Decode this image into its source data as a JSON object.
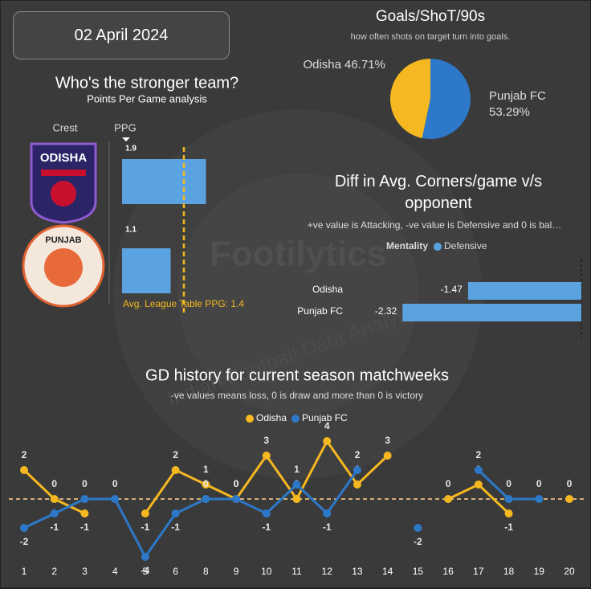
{
  "date": "02 April 2024",
  "watermark": {
    "title": "Footilytics",
    "subtitle": "Indian Football Data Analytics"
  },
  "chart_data": [
    {
      "type": "bar",
      "orientation": "horizontal",
      "title": "Who's the stronger team?",
      "subtitle": "Points Per Game analysis",
      "column_headers": [
        "Crest",
        "PPG"
      ],
      "categories": [
        "ODISHA",
        "PUNJAB"
      ],
      "values": [
        1.9,
        1.1
      ],
      "color": "#5ba3e0",
      "xlim": [
        0,
        3
      ],
      "reference": {
        "value": 1.4,
        "label": "Avg. League Table PPG: 1.4",
        "color": "#f5b820"
      }
    },
    {
      "type": "pie",
      "title": "Goals/ShoT/90s",
      "subtitle": "how often shots on target turn into goals.",
      "categories": [
        "Odisha",
        "Punjab FC"
      ],
      "values": [
        46.71,
        53.29
      ],
      "value_labels": [
        "46.71%",
        "53.29%"
      ],
      "colors": [
        "#f5b820",
        "#2d78c8"
      ]
    },
    {
      "type": "bar",
      "orientation": "horizontal",
      "title": "Diff in Avg. Corners/game v/s opponent",
      "subtitle": "+ve value is Attacking, -ve value is Defensive and 0 is bal…",
      "legend_title": "Mentality",
      "categories": [
        "Odisha",
        "Punjab FC"
      ],
      "series": [
        {
          "name": "Defensive",
          "color": "#5ba3e0",
          "values": [
            -1.47,
            -2.32
          ]
        }
      ],
      "xlim": [
        -2.5,
        0
      ]
    },
    {
      "type": "line",
      "title": "GD history for current season matchweeks",
      "subtitle": "-ve values means loss, 0 is draw and more than 0 is victory",
      "categories": [
        1,
        2,
        3,
        4,
        5,
        6,
        8,
        9,
        10,
        11,
        12,
        13,
        14,
        15,
        16,
        17,
        18,
        19,
        20
      ],
      "series": [
        {
          "name": "Odisha",
          "color": "#f5b820",
          "values": [
            2,
            0,
            -1,
            null,
            -1,
            2,
            1,
            0,
            3,
            0,
            4,
            1,
            3,
            null,
            0,
            1,
            -1,
            null,
            0
          ]
        },
        {
          "name": "Punjab FC",
          "color": "#2d78c8",
          "values": [
            -2,
            -1,
            0,
            0,
            -4,
            -1,
            0,
            0,
            -1,
            1,
            -1,
            2,
            null,
            -2,
            null,
            2,
            0,
            0,
            null
          ]
        }
      ],
      "ylim": [
        -4.5,
        4.5
      ]
    }
  ]
}
